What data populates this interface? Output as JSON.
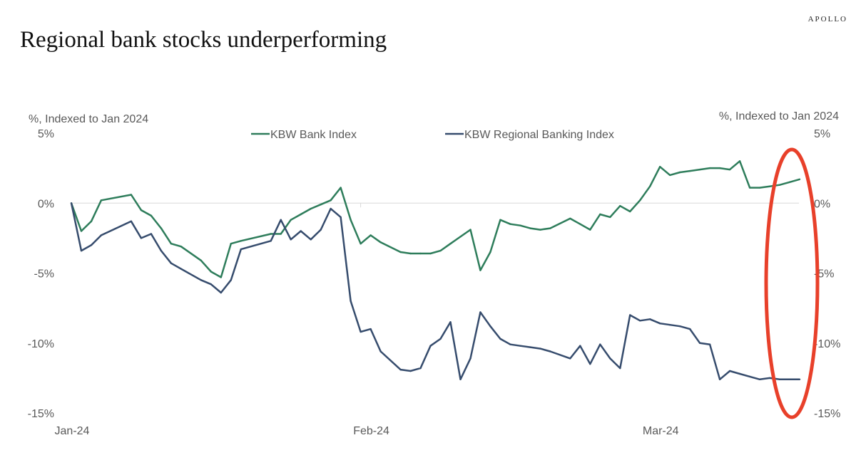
{
  "brand": "APOLLO",
  "chart_data": {
    "type": "line",
    "title": "Regional bank stocks underperforming",
    "ylabel_left": "%, Indexed to Jan 2024",
    "ylabel_right": "%, Indexed to Jan 2024",
    "ylim": [
      -15,
      5
    ],
    "y_ticks": [
      5,
      0,
      -5,
      -10,
      -15
    ],
    "y_tick_labels": [
      "5%",
      "0%",
      "-5%",
      "-10%",
      "-15%"
    ],
    "xlim": [
      0,
      75
    ],
    "x_ticks": [
      0,
      30,
      59
    ],
    "x_tick_labels": [
      "Jan-24",
      "Feb-24",
      "Mar-24"
    ],
    "legend": "top",
    "annotation": "red ellipse highlighting latest values",
    "series": [
      {
        "name": "KBW Bank Index",
        "color": "#2e7d5b",
        "x": [
          1,
          2,
          3,
          4,
          7,
          8,
          9,
          10,
          11,
          12,
          14,
          15,
          16,
          17,
          18,
          21,
          22,
          23,
          24,
          25,
          26,
          27,
          28,
          29,
          30,
          31,
          32,
          34,
          35,
          36,
          37,
          38,
          39,
          40,
          41,
          42,
          43,
          44,
          45,
          46,
          47,
          48,
          49,
          51,
          52,
          53,
          54,
          55,
          56,
          57,
          58,
          59,
          60,
          61,
          62,
          63,
          64,
          65,
          66,
          67,
          68,
          69,
          70,
          71,
          72,
          73,
          74
        ],
        "values": [
          0,
          -2,
          -1.3,
          0.2,
          0.6,
          -0.5,
          -0.9,
          -1.8,
          -2.9,
          -3.1,
          -4.1,
          -4.9,
          -5.3,
          -2.9,
          -2.7,
          -2.2,
          -2.2,
          -1.2,
          -0.8,
          -0.4,
          -0.1,
          0.2,
          1.1,
          -1.2,
          -2.9,
          -2.3,
          -2.8,
          -3.5,
          -3.6,
          -3.6,
          -3.6,
          -3.4,
          -2.9,
          -2.4,
          -1.9,
          -4.8,
          -3.5,
          -1.2,
          -1.5,
          -1.6,
          -1.8,
          -1.9,
          -1.8,
          -1.1,
          -1.5,
          -1.9,
          -0.8,
          -1,
          -0.2,
          -0.6,
          0.2,
          1.2,
          2.6,
          2,
          2.2,
          2.3,
          2.4,
          2.5,
          2.5,
          2.4,
          3,
          1.1,
          1.1,
          1.2,
          1.3,
          1.5,
          1.7
        ]
      },
      {
        "name": "KBW Regional Banking Index",
        "color": "#364c6d",
        "x": [
          1,
          2,
          3,
          4,
          7,
          8,
          9,
          10,
          11,
          12,
          14,
          15,
          16,
          17,
          18,
          21,
          22,
          23,
          24,
          25,
          26,
          27,
          28,
          29,
          30,
          31,
          32,
          34,
          35,
          36,
          37,
          38,
          39,
          40,
          41,
          42,
          43,
          44,
          45,
          46,
          47,
          48,
          49,
          51,
          52,
          53,
          54,
          55,
          56,
          57,
          58,
          59,
          60,
          61,
          62,
          63,
          64,
          65,
          66,
          67,
          68,
          69,
          70,
          71,
          72,
          73,
          74
        ],
        "values": [
          0,
          -3.4,
          -3,
          -2.3,
          -1.3,
          -2.5,
          -2.2,
          -3.4,
          -4.3,
          -4.7,
          -5.5,
          -5.8,
          -6.4,
          -5.5,
          -3.3,
          -2.7,
          -1.2,
          -2.6,
          -2,
          -2.6,
          -1.9,
          -0.4,
          -1,
          -7,
          -9.2,
          -9,
          -10.6,
          -11.9,
          -12,
          -11.8,
          -10.2,
          -9.7,
          -8.5,
          -12.6,
          -11.1,
          -7.8,
          -8.8,
          -9.7,
          -10.1,
          -10.2,
          -10.3,
          -10.4,
          -10.6,
          -11.1,
          -10.2,
          -11.5,
          -10.1,
          -11.1,
          -11.8,
          -8,
          -8.4,
          -8.3,
          -8.6,
          -8.7,
          -8.8,
          -9,
          -10,
          -10.1,
          -12.6,
          -12,
          -12.2,
          -12.4,
          -12.6,
          -12.5,
          -12.6,
          -12.6,
          -12.6
        ]
      }
    ]
  }
}
